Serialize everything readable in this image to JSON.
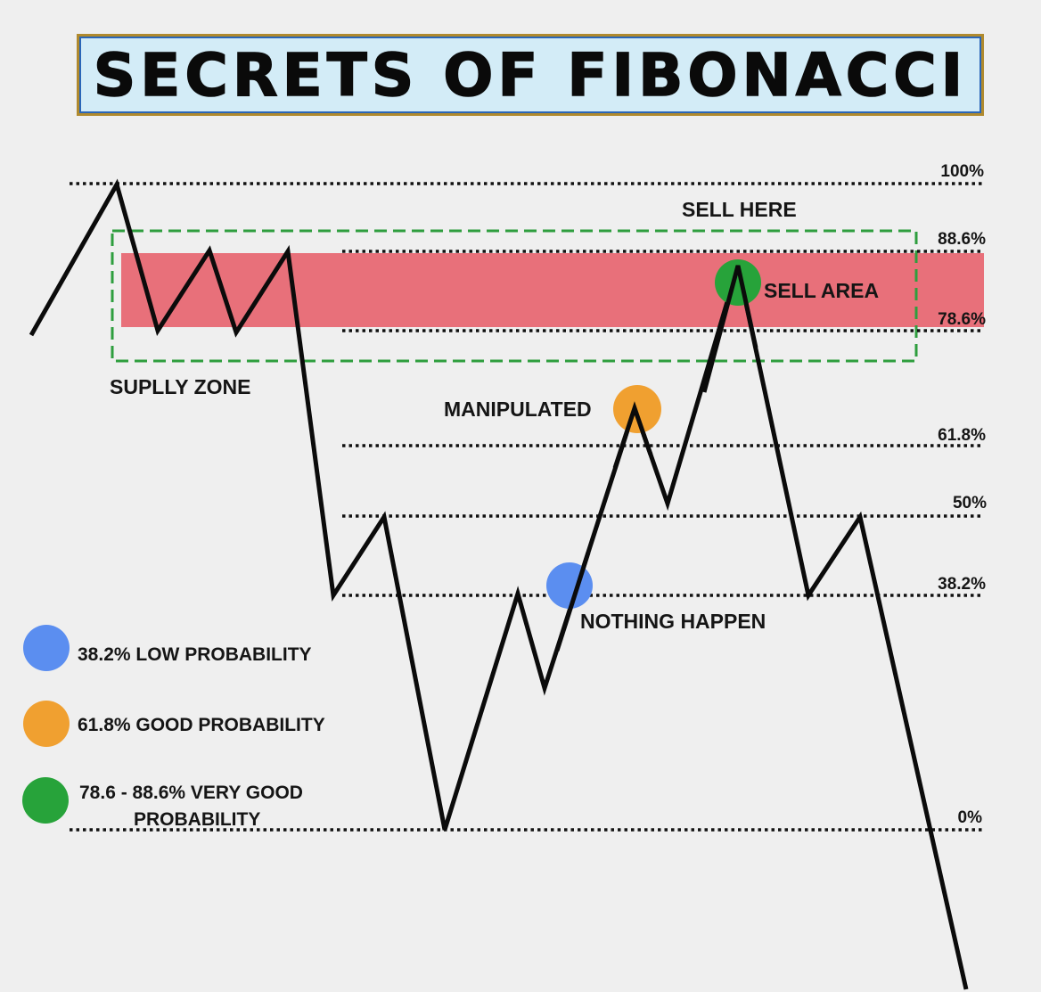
{
  "title": "SECRETS OF FIBONACCI",
  "levels": [
    {
      "label": "100%",
      "value": 100
    },
    {
      "label": "88.6%",
      "value": 88.6
    },
    {
      "label": "78.6%",
      "value": 78.6
    },
    {
      "label": "61.8%",
      "value": 61.8
    },
    {
      "label": "50%",
      "value": 50
    },
    {
      "label": "38.2%",
      "value": 38.2
    },
    {
      "label": "0%",
      "value": 0
    }
  ],
  "annotations": {
    "sell_here": "SELL HERE",
    "sell_area": "SELL AREA",
    "supply_zone": "SUPLLY ZONE",
    "manipulated": "MANIPULATED",
    "nothing_happen": "NOTHING HAPPEN"
  },
  "legend": [
    {
      "color": "#5b8ef0",
      "text": "38.2% LOW PROBABILITY"
    },
    {
      "color": "#f0a030",
      "text": "61.8% GOOD PROBABILITY"
    },
    {
      "color": "#27a33a",
      "line1": "78.6 - 88.6% VERY GOOD",
      "line2": "PROBABILITY"
    }
  ],
  "colors": {
    "zone_fill": "#e8707a",
    "zone_border": "#2e9e3e",
    "blue": "#5b8ef0",
    "orange": "#f0a030",
    "green": "#27a33a"
  }
}
